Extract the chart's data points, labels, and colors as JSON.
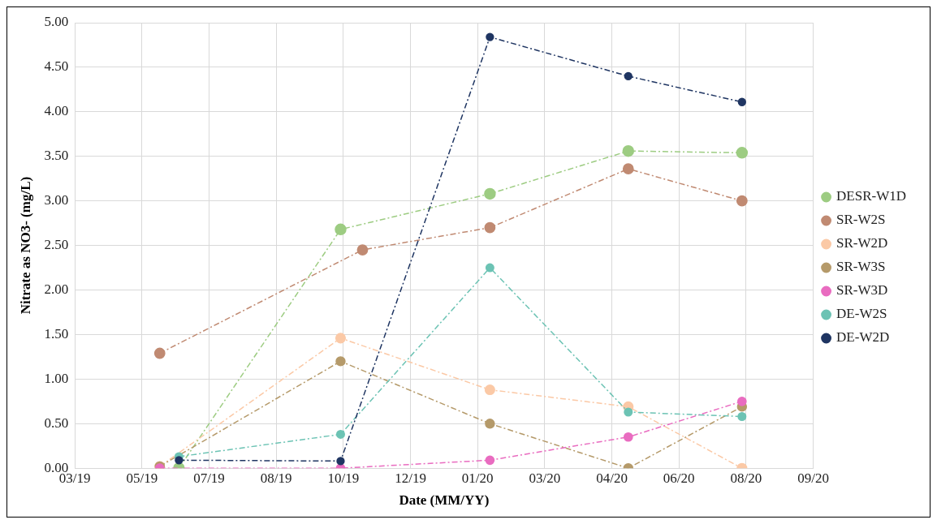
{
  "chart_data": {
    "type": "line",
    "xlabel": "Date (MM/YY)",
    "ylabel": "Nitrate as NO3- (mg/L)",
    "xlim": [
      "2019-03-31",
      "2020-09-20"
    ],
    "xticks": [
      {
        "value": "2019-03-31",
        "label": "03/19"
      },
      {
        "value": "2019-05-19",
        "label": "05/19"
      },
      {
        "value": "2019-07-07",
        "label": "07/19"
      },
      {
        "value": "2019-08-25",
        "label": "08/19"
      },
      {
        "value": "2019-10-13",
        "label": "10/19"
      },
      {
        "value": "2019-12-01",
        "label": "12/19"
      },
      {
        "value": "2020-01-19",
        "label": "01/20"
      },
      {
        "value": "2020-03-08",
        "label": "03/20"
      },
      {
        "value": "2020-04-26",
        "label": "04/20"
      },
      {
        "value": "2020-06-14",
        "label": "06/20"
      },
      {
        "value": "2020-08-02",
        "label": "08/20"
      },
      {
        "value": "2020-09-20",
        "label": "09/20"
      }
    ],
    "ylim": [
      0,
      5
    ],
    "yticks": [
      {
        "value": 0,
        "label": "0.00"
      },
      {
        "value": 0.5,
        "label": "0.50"
      },
      {
        "value": 1,
        "label": "1.00"
      },
      {
        "value": 1.5,
        "label": "1.50"
      },
      {
        "value": 2,
        "label": "2.00"
      },
      {
        "value": 2.5,
        "label": "2.50"
      },
      {
        "value": 3,
        "label": "3.00"
      },
      {
        "value": 3.5,
        "label": "3.50"
      },
      {
        "value": 4,
        "label": "4.00"
      },
      {
        "value": 4.5,
        "label": "4.50"
      },
      {
        "value": 5,
        "label": "5.00"
      }
    ],
    "grid": true,
    "legend": "right",
    "marker": "circle",
    "line_style": "dashed",
    "series": [
      {
        "name": "DESR-W1D",
        "color": "#9dcc82",
        "x": [
          "2019-06-15",
          "2019-10-11",
          "2020-01-28",
          "2020-05-08",
          "2020-07-30"
        ],
        "values": [
          0.0,
          2.68,
          3.08,
          3.56,
          3.54
        ]
      },
      {
        "name": "SR-W2S",
        "color": "#c08a72",
        "x": [
          "2019-06-01",
          "2019-10-27",
          "2020-01-28",
          "2020-05-08",
          "2020-07-30"
        ],
        "values": [
          1.29,
          2.45,
          2.7,
          3.36,
          3.0
        ]
      },
      {
        "name": "SR-W2D",
        "color": "#fbc9a6",
        "x": [
          "2019-06-01",
          "2019-10-11",
          "2020-01-28",
          "2020-05-08",
          "2020-07-30"
        ],
        "values": [
          0.02,
          1.46,
          0.88,
          0.69,
          0.0
        ]
      },
      {
        "name": "SR-W3S",
        "color": "#b59a6a",
        "x": [
          "2019-06-01",
          "2019-10-11",
          "2020-01-28",
          "2020-05-08",
          "2020-07-30"
        ],
        "values": [
          0.02,
          1.2,
          0.5,
          0.0,
          0.69
        ]
      },
      {
        "name": "SR-W3D",
        "color": "#e96cc0",
        "x": [
          "2019-06-01",
          "2019-10-11",
          "2020-01-28",
          "2020-05-08",
          "2020-07-30"
        ],
        "values": [
          0.0,
          0.0,
          0.09,
          0.35,
          0.75
        ]
      },
      {
        "name": "DE-W2S",
        "color": "#6cc3b4",
        "x": [
          "2019-06-15",
          "2019-10-11",
          "2020-01-28",
          "2020-05-08",
          "2020-07-30"
        ],
        "values": [
          0.13,
          0.38,
          2.25,
          0.63,
          0.58
        ]
      },
      {
        "name": "DE-W2D",
        "color": "#1f3562",
        "x": [
          "2019-06-15",
          "2019-10-11",
          "2020-01-28",
          "2020-05-08",
          "2020-07-30"
        ],
        "values": [
          0.09,
          0.08,
          4.84,
          4.4,
          4.11
        ]
      }
    ]
  }
}
